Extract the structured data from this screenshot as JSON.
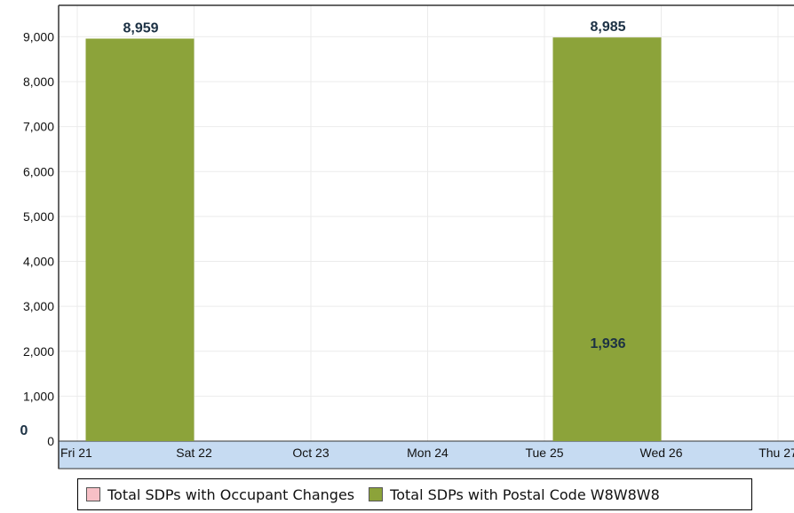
{
  "chart_data": {
    "type": "bar",
    "categories": [
      "Fri 21",
      "Sat 22",
      "Oct 23",
      "Mon 24",
      "Tue 25",
      "Wed 26",
      "Thu 27"
    ],
    "series": [
      {
        "name": "Total SDPs with Occupant Changes",
        "color": "#f7c0c6",
        "values": [
          0,
          null,
          null,
          null,
          null,
          1936,
          null
        ],
        "labels": [
          "0",
          "",
          "",
          "",
          "",
          "1,936",
          ""
        ]
      },
      {
        "name": "Total SDPs with Postal Code W8W8W8",
        "color": "#8ca33a",
        "values": [
          null,
          8959,
          null,
          null,
          null,
          8985,
          null
        ],
        "labels": [
          "",
          "8,959",
          "",
          "",
          "",
          "8,985",
          ""
        ]
      }
    ],
    "y_ticks": [
      "0",
      "1,000",
      "2,000",
      "3,000",
      "4,000",
      "5,000",
      "6,000",
      "7,000",
      "8,000",
      "9,000"
    ],
    "ylim": [
      0,
      9700
    ],
    "grid": true,
    "legend_position": "bottom",
    "x_axis_band_color": "#c6dbf2"
  }
}
